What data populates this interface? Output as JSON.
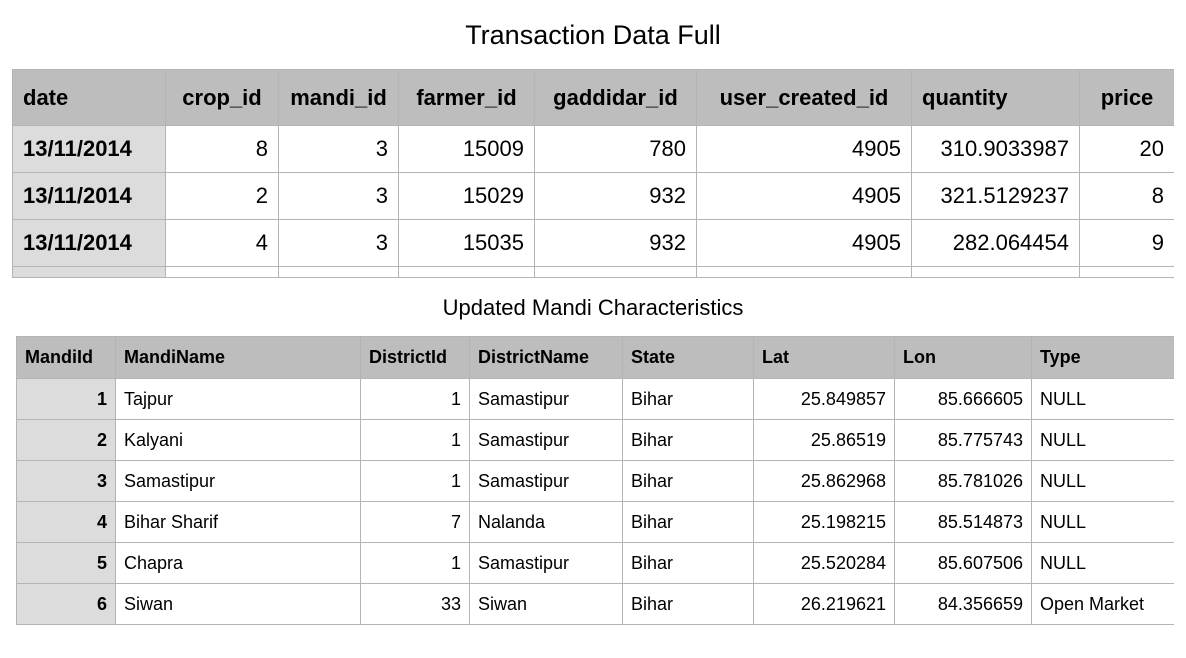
{
  "transaction_table": {
    "title": "Transaction Data Full",
    "columns": [
      "date",
      "crop_id",
      "mandi_id",
      "farmer_id",
      "gaddidar_id",
      "user_created_id",
      "quantity",
      "price"
    ],
    "rows": [
      [
        "13/11/2014",
        "8",
        "3",
        "15009",
        "780",
        "4905",
        "310.9033987",
        "20"
      ],
      [
        "13/11/2014",
        "2",
        "3",
        "15029",
        "932",
        "4905",
        "321.5129237",
        "8"
      ],
      [
        "13/11/2014",
        "4",
        "3",
        "15035",
        "932",
        "4905",
        "282.064454",
        "9"
      ]
    ]
  },
  "mandi_table": {
    "title": "Updated Mandi Characteristics",
    "columns": [
      "MandiId",
      "MandiName",
      "DistrictId",
      "DistrictName",
      "State",
      "Lat",
      "Lon",
      "Type"
    ],
    "rows": [
      [
        "1",
        "Tajpur",
        "1",
        "Samastipur",
        "Bihar",
        "25.849857",
        "85.666605",
        "NULL"
      ],
      [
        "2",
        "Kalyani",
        "1",
        "Samastipur",
        "Bihar",
        "25.86519",
        "85.775743",
        "NULL"
      ],
      [
        "3",
        "Samastipur",
        "1",
        "Samastipur",
        "Bihar",
        "25.862968",
        "85.781026",
        "NULL"
      ],
      [
        "4",
        "Bihar Sharif",
        "7",
        "Nalanda",
        "Bihar",
        "25.198215",
        "85.514873",
        "NULL"
      ],
      [
        "5",
        "Chapra",
        "1",
        "Samastipur",
        "Bihar",
        "25.520284",
        "85.607506",
        "NULL"
      ],
      [
        "6",
        "Siwan",
        "33",
        "Siwan",
        "Bihar",
        "26.219621",
        "84.356659",
        "Open Market"
      ]
    ]
  }
}
